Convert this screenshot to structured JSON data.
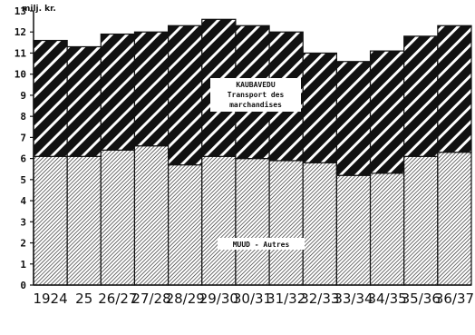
{
  "chart_data": {
    "type": "bar",
    "stacked": true,
    "ylabel": "milj. kr.",
    "ylim": [
      0,
      13
    ],
    "yticks": [
      0,
      1,
      2,
      3,
      4,
      5,
      6,
      7,
      8,
      9,
      10,
      11,
      12,
      13
    ],
    "categories": [
      "1924",
      "25",
      "26/27",
      "27/28",
      "28/29",
      "29/30",
      "30/31",
      "31/32",
      "32/33",
      "33/34",
      "34/35",
      "35/36",
      "36/37"
    ],
    "series": [
      {
        "name": "MUUD - Autres",
        "pattern": "fine-hatch",
        "values": [
          6.1,
          6.1,
          6.4,
          6.6,
          5.7,
          6.1,
          6.0,
          5.9,
          5.8,
          5.2,
          5.3,
          6.1,
          6.3
        ]
      },
      {
        "name": "KAUBAVEDU Transport des marchandises",
        "pattern": "bold-diagonal",
        "values": [
          5.5,
          5.2,
          5.5,
          5.4,
          6.6,
          6.5,
          6.3,
          6.1,
          5.2,
          5.4,
          5.8,
          5.7,
          6.0
        ]
      }
    ],
    "annotations": {
      "upper_line1": "KAUBAVEDU",
      "upper_line2": "Transport des",
      "upper_line3": "marchandises",
      "lower": "MUUD - Autres"
    },
    "colors": {
      "ink": "#111111",
      "background": "#ffffff"
    }
  }
}
